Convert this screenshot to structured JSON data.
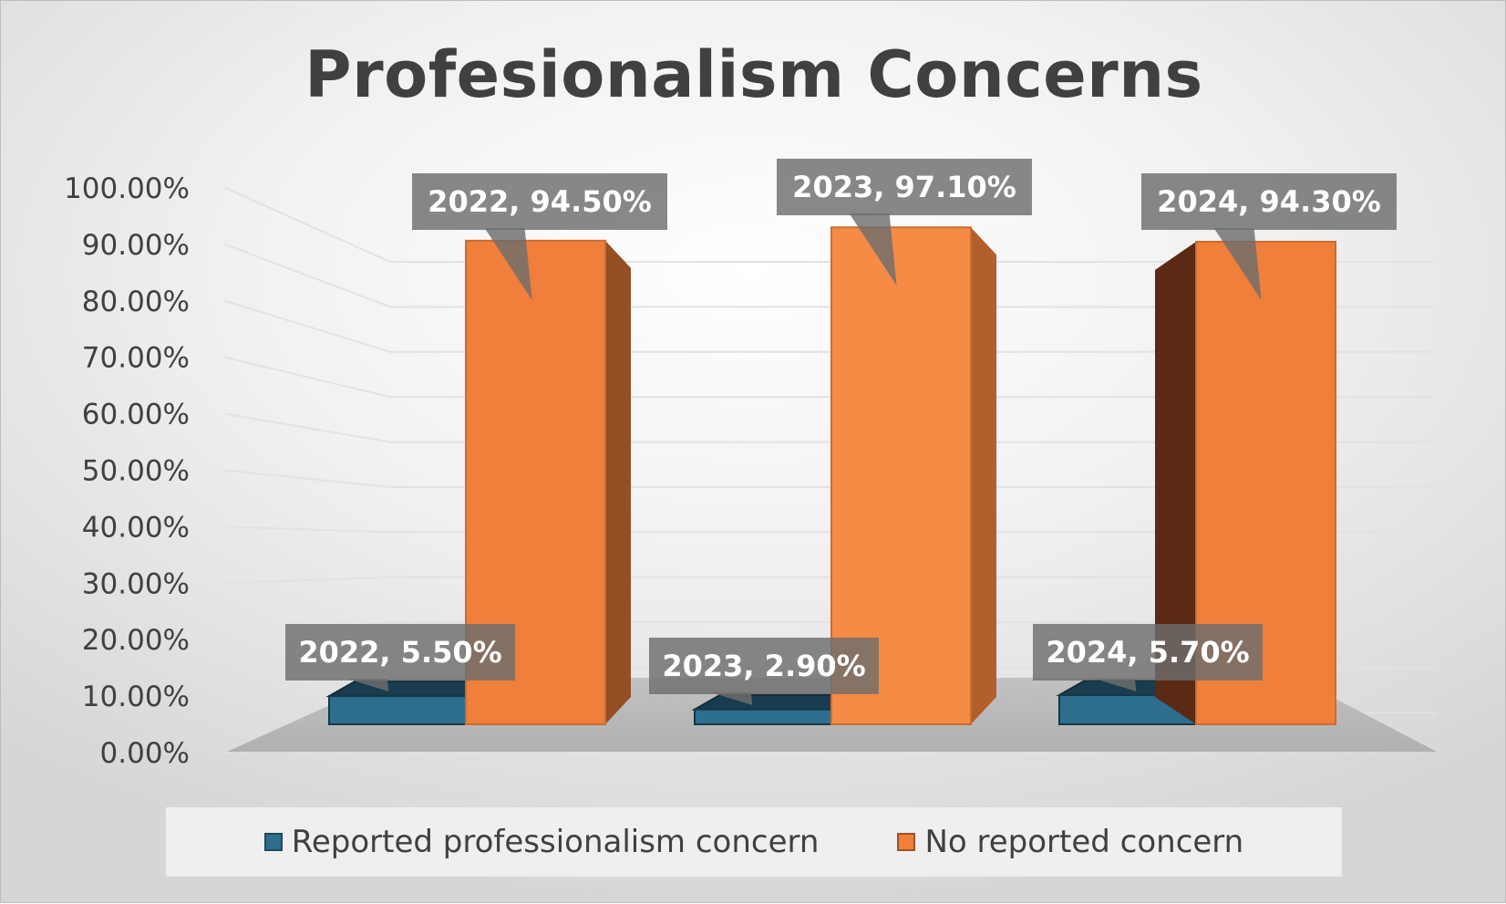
{
  "chart_data": {
    "type": "bar",
    "title": "Profesionalism Concerns",
    "categories": [
      "2022",
      "2023",
      "2024"
    ],
    "series": [
      {
        "name": "Reported professionalism concern",
        "values": [
          5.5,
          2.9,
          5.7
        ],
        "color": "#2e6e8e"
      },
      {
        "name": "No reported concern",
        "values": [
          94.5,
          97.1,
          94.3
        ],
        "color": "#ef7f3a"
      }
    ],
    "data_labels": [
      [
        "2022, 5.50%",
        "2023, 2.90%",
        "2024, 5.70%"
      ],
      [
        "2022, 94.50%",
        "2023, 97.10%",
        "2024, 94.30%"
      ]
    ],
    "y_ticks": [
      "0.00%",
      "10.00%",
      "20.00%",
      "30.00%",
      "40.00%",
      "50.00%",
      "60.00%",
      "70.00%",
      "80.00%",
      "90.00%",
      "100.00%"
    ],
    "ylim": [
      0,
      100
    ],
    "grid": true,
    "legend_position": "bottom",
    "three_d": true
  }
}
